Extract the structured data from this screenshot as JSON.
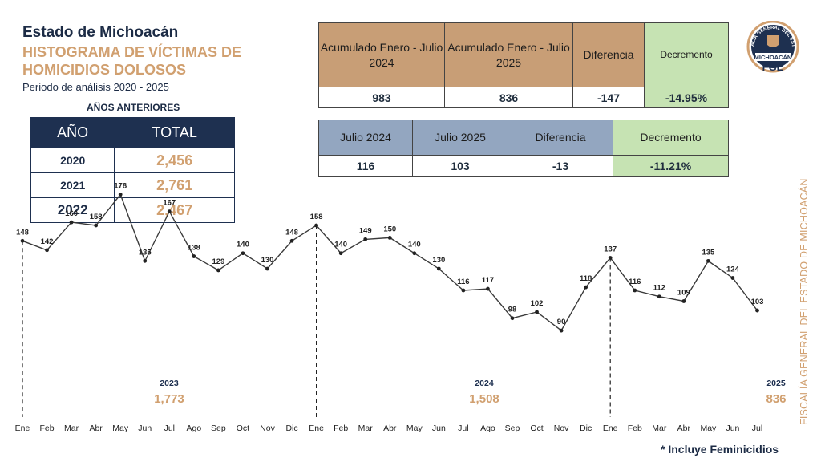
{
  "header": {
    "state": "Estado de Michoacán",
    "title": "HISTOGRAMA DE VÍCTIMAS DE HOMICIDIOS DOLOSOS",
    "period": "Periodo de análisis 2020 - 2025"
  },
  "previous_years": {
    "label": "AÑOS ANTERIORES",
    "col_year": "AÑO",
    "col_total": "TOTAL",
    "rows": [
      {
        "year": "2020",
        "total": "2,456"
      },
      {
        "year": "2021",
        "total": "2,761"
      },
      {
        "year": "2022",
        "total": "2,467"
      }
    ]
  },
  "accumulated": {
    "col1": "Acumulado Enero - Julio 2024",
    "col2": "Acumulado Enero - Julio 2025",
    "col3": "Diferencia",
    "col4": "Decremento",
    "v1": "983",
    "v2": "836",
    "v3": "-147",
    "v4": "-14.95%"
  },
  "july": {
    "col1": "Julio 2024",
    "col2": "Julio 2025",
    "col3": "Diferencia",
    "col4": "Decremento",
    "v1": "116",
    "v2": "103",
    "v3": "-13",
    "v4": "-11.21%"
  },
  "seal": {
    "ring_text": "FISCALÍA GENERAL DEL ESTADO",
    "state": "MICHOACÁN",
    "acronym": "FGE"
  },
  "side_text": "FISCALÍA GENERAL DEL ESTADO DE MICHOACÁN",
  "footnote": "* Incluye Feminicidios",
  "colors": {
    "navy": "#1e3050",
    "tan": "#d1a070",
    "brown_header": "#c89e76",
    "blue_header": "#93a6c0",
    "green_cell": "#c6e3b3",
    "line": "#3a3a3a"
  },
  "chart_data": {
    "type": "line",
    "x": [
      "Ene",
      "Feb",
      "Mar",
      "Abr",
      "May",
      "Jun",
      "Jul",
      "Ago",
      "Sep",
      "Oct",
      "Nov",
      "Dic",
      "Ene",
      "Feb",
      "Mar",
      "Abr",
      "May",
      "Jun",
      "Jul",
      "Ago",
      "Sep",
      "Oct",
      "Nov",
      "Dic",
      "Ene",
      "Feb",
      "Mar",
      "Abr",
      "May",
      "Jun",
      "Jul"
    ],
    "series": [
      {
        "values": [
          148,
          142,
          160,
          158,
          178,
          135,
          167,
          138,
          129,
          140,
          130,
          148,
          158,
          140,
          149,
          150,
          140,
          130,
          116,
          117,
          98,
          102,
          90,
          118,
          137,
          116,
          112,
          109,
          135,
          124,
          103
        ]
      }
    ],
    "year_groups": [
      {
        "year": "2023",
        "total": "1,773"
      },
      {
        "year": "2024",
        "total": "1,508"
      },
      {
        "year": "2025",
        "total": "836"
      }
    ],
    "ylim": [
      60,
      200
    ],
    "grid": false,
    "legend": "none"
  }
}
